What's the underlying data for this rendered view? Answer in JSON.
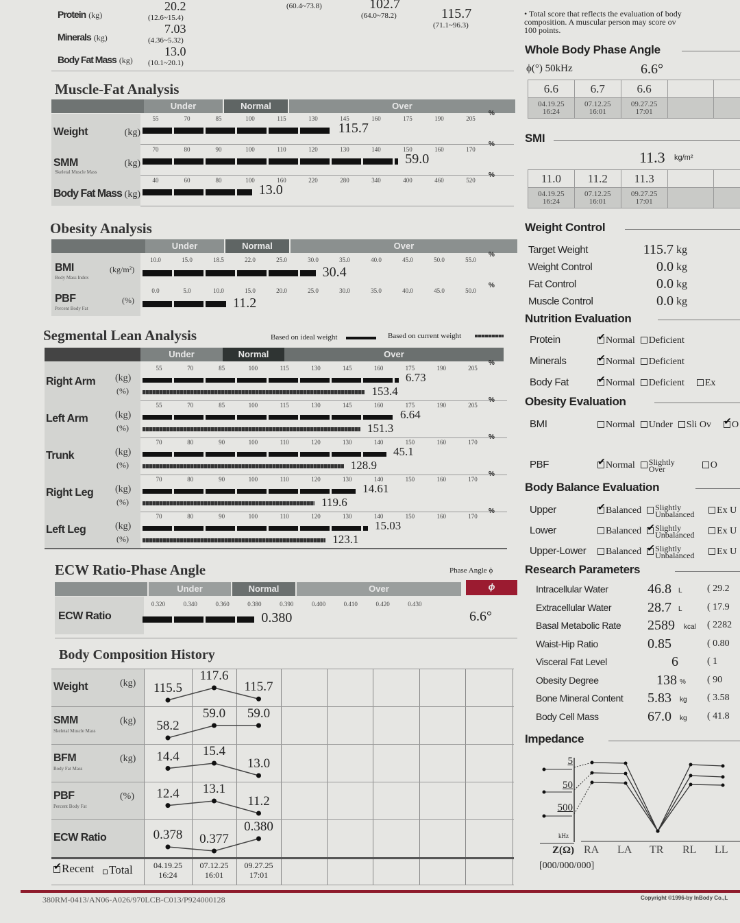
{
  "top_table": {
    "rows": [
      {
        "label": "Protein",
        "unit": "(kg)",
        "value": "20.2",
        "range": "(12.6~15.4)"
      },
      {
        "label": "Minerals",
        "unit": "(kg)",
        "value": "7.03",
        "range": "(4.36~5.32)"
      },
      {
        "label": "Body Fat Mass",
        "unit": "(kg)",
        "value": "13.0",
        "range": "(10.1~20.1)"
      }
    ],
    "col_values": [
      {
        "value": "",
        "range": "(60.4~73.8)"
      },
      {
        "value": "102.7",
        "range": "(64.0~78.2)"
      },
      {
        "value": "115.7",
        "range": "(71.1~96.3)"
      }
    ]
  },
  "bands": {
    "under": "Under",
    "normal": "Normal",
    "over": "Over",
    "pct": "%"
  },
  "muscle_fat": {
    "title": "Muscle-Fat Analysis",
    "rows": [
      {
        "label": "Weight",
        "sub": "",
        "unit": "(kg)",
        "ticks": [
          55,
          70,
          85,
          100,
          115,
          130,
          145,
          160,
          175,
          190,
          205
        ],
        "value": "115.7",
        "level_pct": 138.7
      },
      {
        "label": "SMM",
        "sub": "Skeletal Muscle Mass",
        "unit": "(kg)",
        "ticks": [
          70,
          80,
          90,
          100,
          110,
          120,
          130,
          140,
          150,
          160,
          170
        ],
        "value": "59.0",
        "level_pct": 147
      },
      {
        "label": "Body Fat Mass",
        "sub": "",
        "unit": "(kg)",
        "ticks": [
          40,
          60,
          80,
          100,
          160,
          220,
          280,
          340,
          400,
          460,
          520
        ],
        "value": "13.0",
        "level_pct": 103.6
      }
    ]
  },
  "obesity": {
    "title": "Obesity Analysis",
    "rows": [
      {
        "label": "BMI",
        "sub": "Body Mass Index",
        "unit": "(kg/m²)",
        "ticks": [
          "10.0",
          "15.0",
          "18.5",
          "22.0",
          "25.0",
          "30.0",
          "35.0",
          "40.0",
          "45.0",
          "50.0",
          "55.0"
        ],
        "value": "30.4"
      },
      {
        "label": "PBF",
        "sub": "Percent Body Fat",
        "unit": "(%)",
        "ticks": [
          "0.0",
          "5.0",
          "10.0",
          "15.0",
          "20.0",
          "25.0",
          "30.0",
          "35.0",
          "40.0",
          "45.0",
          "50.0"
        ],
        "value": "11.2"
      }
    ]
  },
  "segmental": {
    "title": "Segmental Lean Analysis",
    "legend_ideal": "Based on ideal weight",
    "legend_current": "Based on current weight",
    "rows": [
      {
        "label": "Right Arm",
        "unit_kg": "(kg)",
        "unit_pct": "(%)",
        "ticks": [
          55,
          70,
          85,
          100,
          115,
          130,
          145,
          160,
          175,
          190,
          205
        ],
        "kg": "6.73",
        "kg_level_pct": 169.6,
        "pct": "153.4"
      },
      {
        "label": "Left Arm",
        "unit_kg": "(kg)",
        "unit_pct": "(%)",
        "ticks": [
          55,
          70,
          85,
          100,
          115,
          130,
          145,
          160,
          175,
          190,
          205
        ],
        "kg": "6.64",
        "kg_level_pct": 167,
        "pct": "151.3"
      },
      {
        "label": "Trunk",
        "unit_kg": "(kg)",
        "unit_pct": "(%)",
        "ticks": [
          70,
          80,
          90,
          100,
          110,
          120,
          130,
          140,
          150,
          160,
          170
        ],
        "kg": "45.1",
        "kg_level_pct": 142.5,
        "pct": "128.9"
      },
      {
        "label": "Right Leg",
        "unit_kg": "(kg)",
        "unit_pct": "(%)",
        "ticks": [
          70,
          80,
          90,
          100,
          110,
          120,
          130,
          140,
          150,
          160,
          170
        ],
        "kg": "14.61",
        "kg_level_pct": 132.7,
        "pct": "119.6"
      },
      {
        "label": "Left Leg",
        "unit_kg": "(kg)",
        "unit_pct": "(%)",
        "ticks": [
          70,
          80,
          90,
          100,
          110,
          120,
          130,
          140,
          150,
          160,
          170
        ],
        "kg": "15.03",
        "kg_level_pct": 136.6,
        "pct": "123.1"
      }
    ]
  },
  "ecw": {
    "title": "ECW Ratio-Phase Angle",
    "phase_label": "Phase Angle ϕ",
    "phase_symbol": "ϕ",
    "row_label": "ECW Ratio",
    "ticks": [
      "0.320",
      "0.340",
      "0.360",
      "0.380",
      "0.390",
      "0.400",
      "0.410",
      "0.420",
      "0.430"
    ],
    "value": "0.380",
    "phase_value": "6.6°"
  },
  "history": {
    "title": "Body Composition History",
    "rows": [
      {
        "label": "Weight",
        "sub": "",
        "unit": "(kg)",
        "values": [
          "115.5",
          "117.6",
          "115.7"
        ]
      },
      {
        "label": "SMM",
        "sub": "Skeletal Muscle Mass",
        "unit": "(kg)",
        "values": [
          "58.2",
          "59.0",
          "59.0"
        ]
      },
      {
        "label": "BFM",
        "sub": "Body Fat Mass",
        "unit": "(kg)",
        "values": [
          "14.4",
          "15.4",
          "13.0"
        ]
      },
      {
        "label": "PBF",
        "sub": "Percent Body Fat",
        "unit": "(%)",
        "values": [
          "12.4",
          "13.1",
          "11.2"
        ]
      },
      {
        "label": "ECW Ratio",
        "sub": "",
        "unit": "",
        "values": [
          "0.378",
          "0.377",
          "0.380"
        ]
      }
    ],
    "dates": [
      [
        "04.19.25",
        "16:24"
      ],
      [
        "07.12.25",
        "16:01"
      ],
      [
        "09.27.25",
        "17:01"
      ]
    ],
    "recent_label": "Recent",
    "recent_checked": true,
    "total_label": "Total",
    "total_checked": false
  },
  "right": {
    "score_note": [
      "• Total score that reflects the evaluation of body",
      "composition. A muscular person may score ov",
      "100 points."
    ],
    "phase": {
      "title": "Whole Body Phase Angle",
      "label": "ϕ(°) 50kHz",
      "value": "6.6°",
      "history": [
        "6.6",
        "6.7",
        "6.6"
      ]
    },
    "smi": {
      "title": "SMI",
      "value": "11.3",
      "unit": "kg/m²",
      "history": [
        "11.0",
        "11.2",
        "11.3"
      ]
    },
    "weight_control": {
      "title": "Weight Control",
      "rows": [
        {
          "label": "Target Weight",
          "value": "115.7",
          "unit": "kg"
        },
        {
          "label": "Weight Control",
          "value": "0.0",
          "unit": "kg"
        },
        {
          "label": "Fat Control",
          "value": "0.0",
          "unit": "kg"
        },
        {
          "label": "Muscle Control",
          "value": "0.0",
          "unit": "kg"
        }
      ]
    },
    "nutrition": {
      "title": "Nutrition Evaluation",
      "rows": [
        {
          "label": "Protein",
          "options": [
            {
              "label": "Normal",
              "checked": true
            },
            {
              "label": "Deficient",
              "checked": false
            }
          ]
        },
        {
          "label": "Minerals",
          "options": [
            {
              "label": "Normal",
              "checked": true
            },
            {
              "label": "Deficient",
              "checked": false
            }
          ]
        },
        {
          "label": "Body Fat",
          "options": [
            {
              "label": "Normal",
              "checked": true
            },
            {
              "label": "Deficient",
              "checked": false
            },
            {
              "label": "Ex",
              "checked": false
            }
          ]
        }
      ]
    },
    "obesity_eval": {
      "title": "Obesity Evaluation",
      "rows": [
        {
          "label": "BMI",
          "options": [
            {
              "label": "Normal",
              "checked": false
            },
            {
              "label": "Under",
              "checked": false
            },
            {
              "label": "Sli Ov",
              "checked": false
            },
            {
              "label": "O",
              "checked": true
            }
          ]
        },
        {
          "label": "PBF",
          "options": [
            {
              "label": "Normal",
              "checked": true
            },
            {
              "label": "Slightly Over",
              "checked": false
            },
            {
              "label": "O",
              "checked": false
            }
          ]
        }
      ]
    },
    "balance": {
      "title": "Body Balance Evaluation",
      "rows": [
        {
          "label": "Upper",
          "options": [
            {
              "label": "Balanced",
              "checked": true
            },
            {
              "label": "Slightly Unbalanced",
              "checked": false
            },
            {
              "label": "Ex U",
              "checked": false
            }
          ]
        },
        {
          "label": "Lower",
          "options": [
            {
              "label": "Balanced",
              "checked": false
            },
            {
              "label": "Slightly Unbalanced",
              "checked": true
            },
            {
              "label": "Ex U",
              "checked": false
            }
          ]
        },
        {
          "label": "Upper-Lower",
          "options": [
            {
              "label": "Balanced",
              "checked": false
            },
            {
              "label": "Slightly Unbalanced",
              "checked": true
            },
            {
              "label": "Ex U",
              "checked": false
            }
          ]
        }
      ]
    },
    "research": {
      "title": "Research Parameters",
      "rows": [
        {
          "label": "Intracellular Water",
          "value": "46.8",
          "unit": "L",
          "range": "( 29.2"
        },
        {
          "label": "Extracellular Water",
          "value": "28.7",
          "unit": "L",
          "range": "( 17.9"
        },
        {
          "label": "Basal Metabolic Rate",
          "value": "2589",
          "unit": "kcal",
          "range": "( 2282"
        },
        {
          "label": "Waist-Hip Ratio",
          "value": "0.85",
          "unit": "",
          "range": "( 0.80"
        },
        {
          "label": "Visceral Fat Level",
          "value": "6",
          "unit": "",
          "range": "(    1"
        },
        {
          "label": "Obesity Degree",
          "value": "138",
          "unit": "%",
          "range": "(   90"
        },
        {
          "label": "Bone Mineral Content",
          "value": "5.83",
          "unit": "kg",
          "range": "( 3.58"
        },
        {
          "label": "Body Cell Mass",
          "value": "67.0",
          "unit": "kg",
          "range": "( 41.8"
        }
      ]
    },
    "impedance": {
      "title": "Impedance",
      "freqs": [
        "5",
        "50",
        "500"
      ],
      "freq_unit": "kHz",
      "z_label": "Z(Ω)",
      "segments": [
        "RA",
        "LA",
        "TR",
        "RL",
        "LL"
      ],
      "code": "[000/000/000]"
    }
  },
  "footer": {
    "serial": "380RM-0413/AN06-A026/970LCB-C013/P924000128",
    "copyright": "Copyright ©1996-by InBody Co.,L"
  },
  "colors": {
    "paper": "#e6e6e3",
    "band": "#8b908f",
    "band_normal": "#5f6564",
    "phase_red": "#9b1b30",
    "footer_line": "#8e1b2c"
  }
}
